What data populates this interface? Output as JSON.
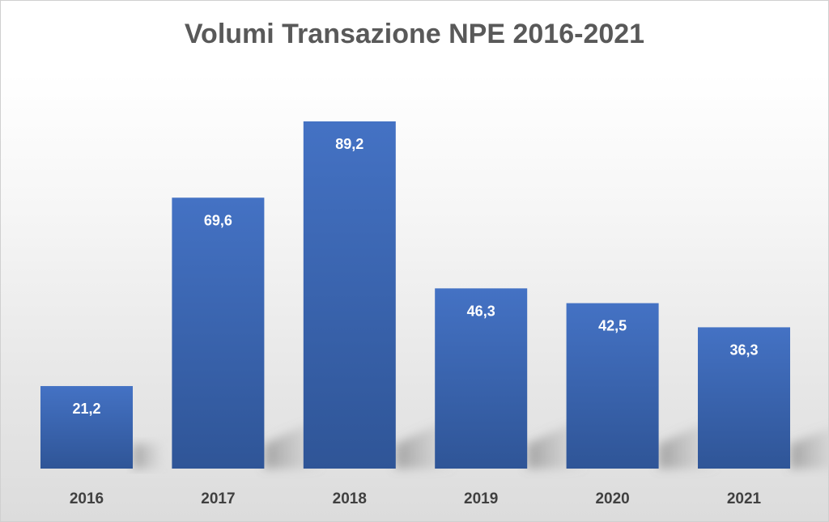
{
  "chart_data": {
    "type": "bar",
    "title": "Volumi Transazione NPE 2016-2021",
    "categories": [
      "2016",
      "2017",
      "2018",
      "2019",
      "2020",
      "2021"
    ],
    "values": [
      21.2,
      69.6,
      89.2,
      46.3,
      42.5,
      36.3
    ],
    "data_labels": [
      "21,2",
      "69,6",
      "89,2",
      "46,3",
      "42,5",
      "36,3"
    ],
    "xlabel": "",
    "ylabel": "",
    "ylim": [
      0,
      89.2
    ],
    "grid": false,
    "legend": "none",
    "colors": {
      "bar_top": "#4472c4",
      "bar_bottom": "#2f5597",
      "title": "#595959",
      "category_text": "#404040",
      "label_text": "#ffffff"
    }
  }
}
